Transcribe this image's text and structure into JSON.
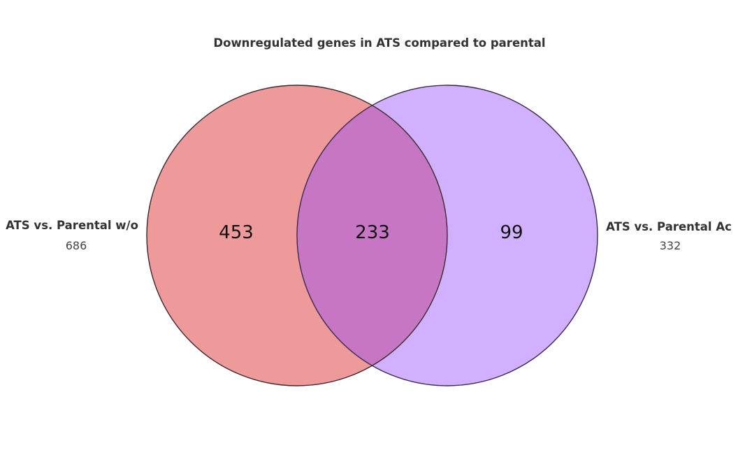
{
  "title": "Downregulated genes in ATS compared to parental",
  "sets": [
    {
      "name": "ATS vs. Parental w/o",
      "total": "686",
      "color": "#ef9a9a"
    },
    {
      "name": "ATS vs. Parental Ac",
      "total": "332",
      "color": "#d1b0ff"
    }
  ],
  "overlap_color": "#c776c3",
  "regions": {
    "left_only": "453",
    "both": "233",
    "right_only": "99"
  }
}
